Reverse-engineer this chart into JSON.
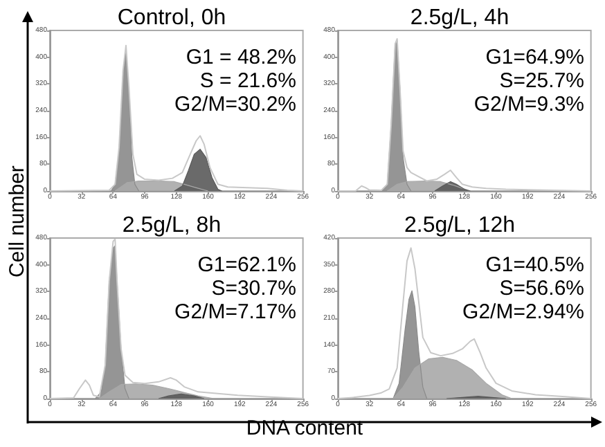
{
  "chart_data": [
    {
      "type": "area",
      "title": "Control, 0h",
      "ylabel": "Cell number",
      "xlim": [
        0,
        256
      ],
      "xticks": [
        0,
        32,
        64,
        96,
        128,
        160,
        192,
        224,
        256
      ],
      "ylim": [
        0,
        480
      ],
      "yticks": [
        0,
        80,
        160,
        240,
        320,
        400,
        480
      ],
      "annotations": [
        "G1 = 48.2%",
        "S = 21.6%",
        "G2/M=30.2%"
      ],
      "series": [
        {
          "type": "line",
          "color": "#c8c8c8",
          "x": [
            0,
            60,
            66,
            70,
            74,
            77,
            80,
            84,
            88,
            96,
            110,
            124,
            134,
            142,
            148,
            152,
            156,
            162,
            170,
            180,
            200,
            220,
            240,
            256
          ],
          "values": [
            0,
            2,
            20,
            130,
            360,
            435,
            310,
            110,
            50,
            35,
            32,
            38,
            55,
            110,
            150,
            165,
            140,
            70,
            20,
            12,
            10,
            8,
            2,
            0
          ]
        },
        {
          "color": "#8a8a8a",
          "x": [
            62,
            66,
            70,
            74,
            77,
            80,
            83,
            86,
            90
          ],
          "values": [
            0,
            20,
            120,
            350,
            420,
            300,
            100,
            20,
            0
          ]
        },
        {
          "color": "#a8a8a8",
          "x": [
            66,
            78,
            90,
            110,
            126,
            136,
            150,
            160
          ],
          "values": [
            0,
            25,
            30,
            30,
            28,
            20,
            8,
            0
          ]
        },
        {
          "color": "#5a5a5a",
          "x": [
            126,
            134,
            140,
            146,
            152,
            158,
            164,
            170,
            174
          ],
          "values": [
            0,
            15,
            60,
            110,
            125,
            100,
            40,
            5,
            0
          ]
        }
      ]
    },
    {
      "type": "area",
      "title": "2.5g/L, 4h",
      "xlim": [
        0,
        256
      ],
      "xticks": [
        0,
        32,
        64,
        96,
        128,
        160,
        192,
        224,
        256
      ],
      "ylim": [
        0,
        480
      ],
      "yticks": [
        0,
        80,
        160,
        240,
        320,
        400,
        480
      ],
      "annotations": [
        "G1=64.9%",
        "S=25.7%",
        "G2/M=9.3%"
      ],
      "series": [
        {
          "type": "line",
          "color": "#c8c8c8",
          "x": [
            0,
            18,
            24,
            28,
            32,
            44,
            50,
            54,
            58,
            60,
            63,
            66,
            70,
            74,
            90,
            100,
            108,
            114,
            120,
            126,
            136,
            150,
            170,
            200,
            256
          ],
          "values": [
            0,
            0,
            15,
            10,
            3,
            2,
            20,
            200,
            440,
            455,
            300,
            120,
            70,
            55,
            30,
            35,
            50,
            62,
            40,
            20,
            12,
            8,
            5,
            3,
            0
          ]
        },
        {
          "color": "#8a8a8a",
          "x": [
            44,
            50,
            54,
            58,
            60,
            63,
            66,
            70,
            74
          ],
          "values": [
            0,
            20,
            200,
            440,
            450,
            300,
            100,
            20,
            0
          ]
        },
        {
          "color": "#a8a8a8",
          "x": [
            50,
            60,
            70,
            90,
            104,
            116,
            126,
            134
          ],
          "values": [
            0,
            20,
            28,
            30,
            28,
            18,
            8,
            0
          ]
        },
        {
          "color": "#5a5a5a",
          "x": [
            98,
            106,
            114,
            120,
            128,
            134
          ],
          "values": [
            0,
            15,
            28,
            20,
            5,
            0
          ]
        }
      ]
    },
    {
      "type": "area",
      "title": "2.5g/L, 8h",
      "xlabel": "DNA content",
      "xlim": [
        0,
        256
      ],
      "xticks": [
        0,
        32,
        64,
        96,
        128,
        160,
        192,
        224,
        256
      ],
      "ylim": [
        0,
        480
      ],
      "yticks": [
        0,
        80,
        160,
        240,
        320,
        400,
        480
      ],
      "annotations": [
        "G1=62.1%",
        "S=30.7%",
        "G2/M=7.17%"
      ],
      "series": [
        {
          "type": "line",
          "color": "#c8c8c8",
          "x": [
            0,
            24,
            30,
            36,
            40,
            44,
            50,
            56,
            60,
            64,
            66,
            68,
            72,
            76,
            84,
            96,
            110,
            122,
            128,
            136,
            150,
            170,
            190,
            220,
            256
          ],
          "values": [
            0,
            2,
            30,
            55,
            40,
            10,
            5,
            100,
            350,
            470,
            477,
            350,
            150,
            70,
            48,
            45,
            50,
            62,
            55,
            35,
            20,
            15,
            10,
            5,
            0
          ]
        },
        {
          "color": "#8a8a8a",
          "x": [
            46,
            52,
            56,
            60,
            64,
            66,
            68,
            72,
            76,
            80
          ],
          "values": [
            0,
            20,
            100,
            350,
            450,
            457,
            350,
            150,
            30,
            0
          ]
        },
        {
          "color": "#a8a8a8",
          "x": [
            50,
            60,
            72,
            87,
            104,
            120,
            136,
            150,
            166
          ],
          "values": [
            0,
            20,
            42,
            44,
            40,
            30,
            18,
            8,
            0
          ]
        },
        {
          "color": "#5a5a5a",
          "x": [
            110,
            120,
            133,
            146,
            156
          ],
          "values": [
            0,
            8,
            14,
            8,
            0
          ]
        }
      ]
    },
    {
      "type": "area",
      "title": "2.5g/L, 12h",
      "xlim": [
        0,
        256
      ],
      "xticks": [
        0,
        32,
        64,
        96,
        128,
        160,
        192,
        224,
        256
      ],
      "ylim": [
        0,
        420
      ],
      "yticks": [
        0,
        70,
        140,
        210,
        280,
        350,
        420
      ],
      "annotations": [
        "G1=40.5%",
        "S=56.6%",
        "G2/M=2.94%"
      ],
      "series": [
        {
          "type": "line",
          "color": "#c8c8c8",
          "x": [
            0,
            16,
            32,
            44,
            52,
            60,
            66,
            70,
            74,
            78,
            82,
            86,
            94,
            104,
            116,
            126,
            134,
            138,
            144,
            150,
            160,
            176,
            200,
            230,
            256
          ],
          "values": [
            0,
            3,
            8,
            15,
            25,
            80,
            250,
            360,
            394,
            340,
            250,
            160,
            120,
            112,
            118,
            130,
            150,
            156,
            120,
            80,
            40,
            20,
            10,
            5,
            0
          ]
        },
        {
          "color": "#8a8a8a",
          "x": [
            56,
            62,
            68,
            72,
            75,
            78,
            82,
            86,
            90
          ],
          "values": [
            0,
            40,
            180,
            260,
            282,
            240,
            120,
            30,
            0
          ]
        },
        {
          "color": "#a8a8a8",
          "x": [
            56,
            66,
            78,
            92,
            106,
            120,
            136,
            150,
            166,
            176
          ],
          "values": [
            0,
            30,
            80,
            104,
            108,
            100,
            75,
            40,
            10,
            0
          ]
        },
        {
          "color": "#5a5a5a",
          "x": [
            110,
            126,
            142,
            156,
            170
          ],
          "values": [
            0,
            3,
            6,
            3,
            0
          ]
        }
      ]
    }
  ]
}
